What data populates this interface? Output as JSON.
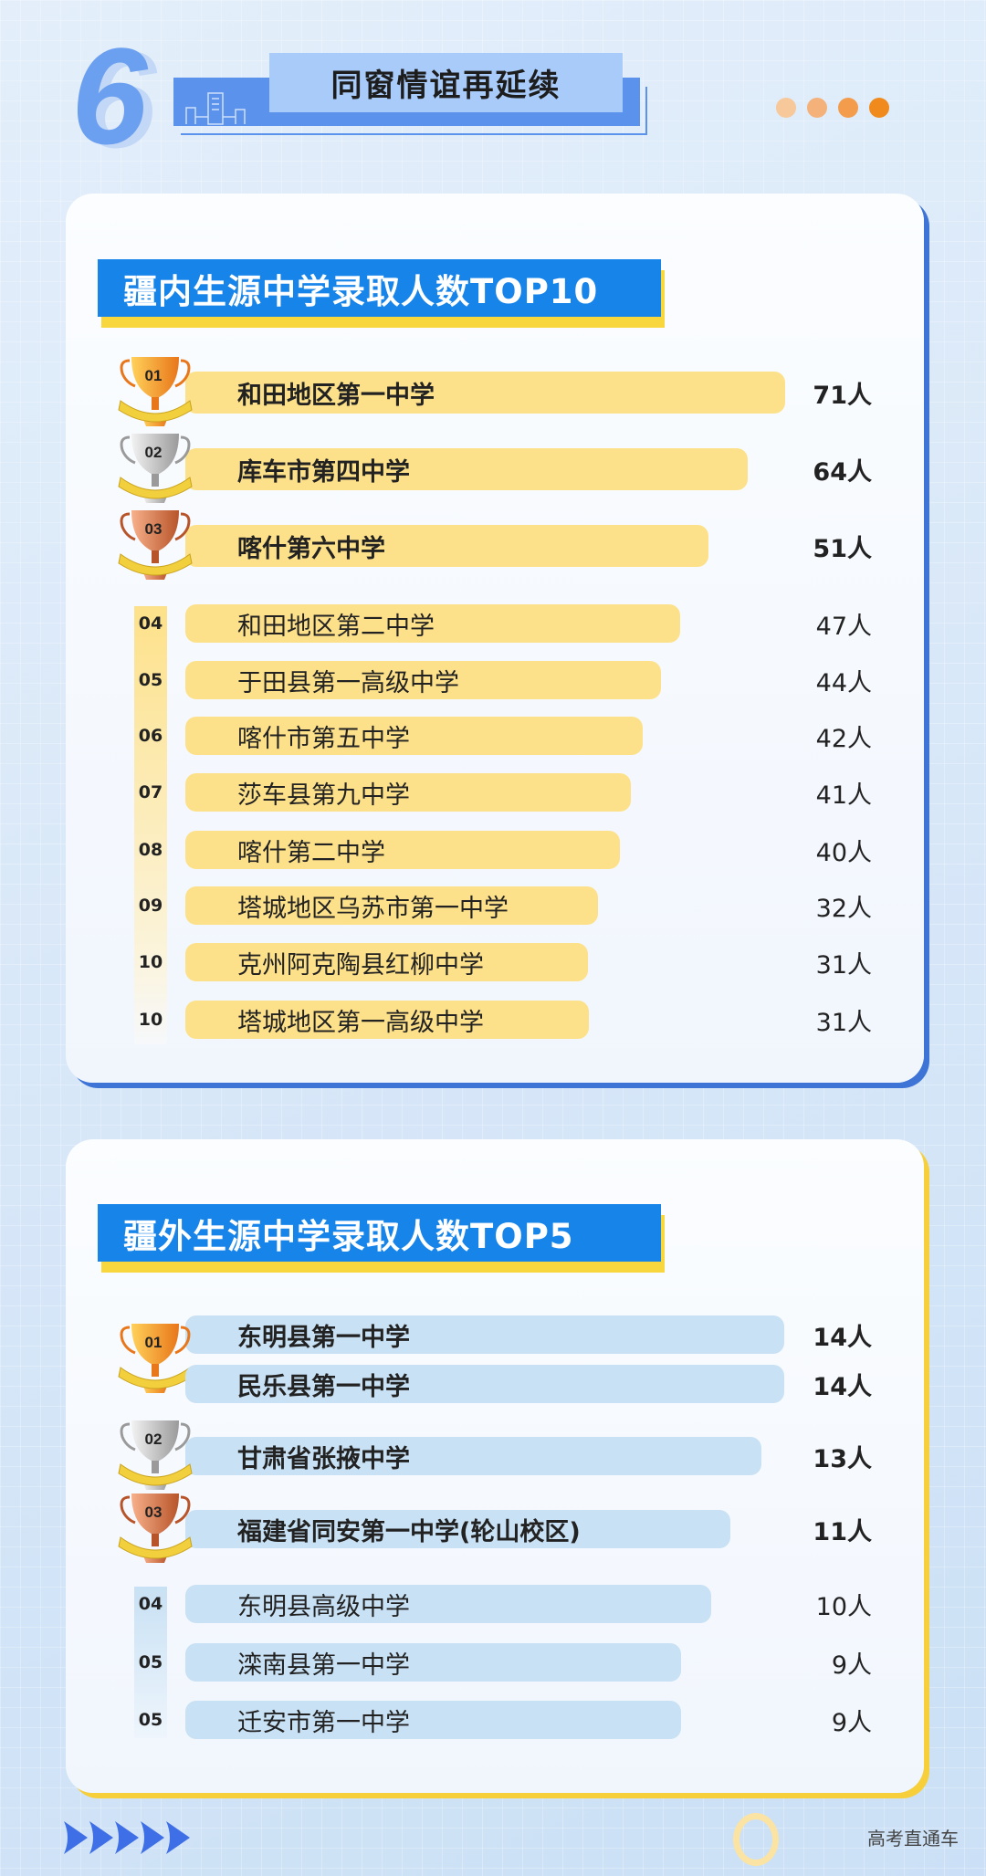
{
  "header": {
    "section_number": "6",
    "title": "同窗情谊再延续",
    "accent_dots": [
      "#f6c89a",
      "#f4b27a",
      "#f29c4c",
      "#f08a1c"
    ]
  },
  "colors": {
    "heading_bg": "#1784ea",
    "heading_underline": "#f8d73e",
    "top_bar": "#fde18a",
    "bottom_bar": "#c8e1f4",
    "card1_shadow": "#3e74d6",
    "card2_shadow": "#f6cf3a"
  },
  "xinjiang": {
    "heading": "疆内生源中学录取人数TOP10",
    "rows": [
      {
        "rank": "01",
        "name": "和田地区第一中学",
        "value": "71人",
        "trophy": "gold"
      },
      {
        "rank": "02",
        "name": "库车市第四中学",
        "value": "64人",
        "trophy": "silver"
      },
      {
        "rank": "03",
        "name": "喀什第六中学",
        "value": "51人",
        "trophy": "bronze"
      },
      {
        "rank": "04",
        "name": "和田地区第二中学",
        "value": "47人"
      },
      {
        "rank": "05",
        "name": "于田县第一高级中学",
        "value": "44人"
      },
      {
        "rank": "06",
        "name": "喀什市第五中学",
        "value": "42人"
      },
      {
        "rank": "07",
        "name": "莎车县第九中学",
        "value": "41人"
      },
      {
        "rank": "08",
        "name": "喀什第二中学",
        "value": "40人"
      },
      {
        "rank": "09",
        "name": "塔城地区乌苏市第一中学",
        "value": "32人"
      },
      {
        "rank": "10",
        "name": "克州阿克陶县红柳中学",
        "value": "31人"
      },
      {
        "rank": "10",
        "name": "塔城地区第一高级中学",
        "value": "31人"
      }
    ]
  },
  "outside": {
    "heading": "疆外生源中学录取人数TOP5",
    "rows": [
      {
        "rank": "01",
        "name": "东明县第一中学",
        "value": "14人",
        "trophy": "gold"
      },
      {
        "rank": "01",
        "name": "民乐县第一中学",
        "value": "14人"
      },
      {
        "rank": "02",
        "name": "甘肃省张掖中学",
        "value": "13人",
        "trophy": "silver"
      },
      {
        "rank": "03",
        "name": "福建省同安第一中学(轮山校区)",
        "value": "11人",
        "trophy": "bronze"
      },
      {
        "rank": "04",
        "name": "东明县高级中学",
        "value": "10人"
      },
      {
        "rank": "05",
        "name": "滦南县第一中学",
        "value": "9人"
      },
      {
        "rank": "05",
        "name": "迁安市第一中学",
        "value": "9人"
      }
    ]
  },
  "footer": {
    "brand": "高考直通车"
  }
}
